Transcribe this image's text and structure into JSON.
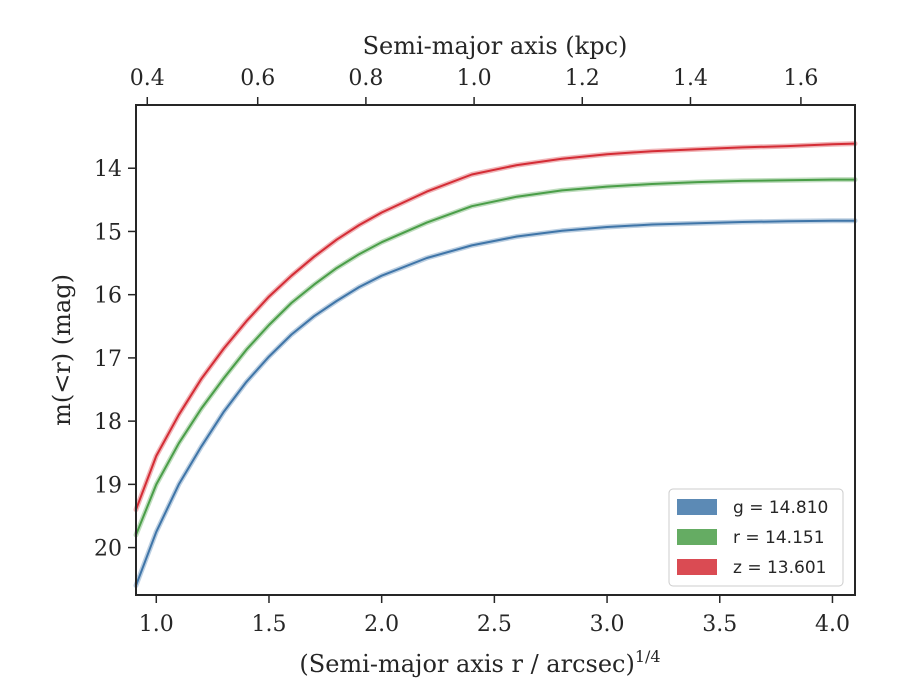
{
  "chart_data": {
    "type": "line",
    "title": "",
    "xlabel": "(Semi-major axis r / arcsec)",
    "xlabel_exponent": "1/4",
    "ylabel": "m(<r) (mag)",
    "top_xlabel": "Semi-major axis (kpc)",
    "xlim": [
      0.91,
      4.1
    ],
    "ylim": [
      20.75,
      13.0
    ],
    "y_inverted": true,
    "xticks": [
      1.0,
      1.5,
      2.0,
      2.5,
      3.0,
      3.5,
      4.0
    ],
    "xtick_labels": [
      "1.0",
      "1.5",
      "2.0",
      "2.5",
      "3.0",
      "3.5",
      "4.0"
    ],
    "yticks": [
      14,
      15,
      16,
      17,
      18,
      19,
      20
    ],
    "ytick_labels": [
      "14",
      "15",
      "16",
      "17",
      "18",
      "19",
      "20"
    ],
    "top_axis": {
      "ticks_kpc": [
        0.4,
        0.6,
        0.8,
        1.0,
        1.2,
        1.4,
        1.6
      ],
      "tick_labels": [
        "0.4",
        "0.6",
        "0.8",
        "1.0",
        "1.2",
        "1.4",
        "1.6"
      ],
      "at_x": [
        0.96,
        1.45,
        1.93,
        2.41,
        2.89,
        3.37,
        3.86
      ]
    },
    "grid": false,
    "legend_position": "lower-right",
    "series": [
      {
        "name": "g = 14.810",
        "color": "#3f75a8",
        "x": [
          0.91,
          1.0,
          1.1,
          1.2,
          1.3,
          1.4,
          1.5,
          1.6,
          1.7,
          1.8,
          1.9,
          2.0,
          2.2,
          2.4,
          2.6,
          2.8,
          3.0,
          3.2,
          3.4,
          3.6,
          3.8,
          4.0,
          4.1
        ],
        "y": [
          20.6,
          19.75,
          19.0,
          18.4,
          17.85,
          17.38,
          16.98,
          16.63,
          16.34,
          16.1,
          15.88,
          15.7,
          15.42,
          15.22,
          15.08,
          14.99,
          14.93,
          14.89,
          14.87,
          14.85,
          14.84,
          14.83,
          14.83
        ]
      },
      {
        "name": "r = 14.151",
        "color": "#4a9e48",
        "x": [
          0.91,
          1.0,
          1.1,
          1.2,
          1.3,
          1.4,
          1.5,
          1.6,
          1.7,
          1.8,
          1.9,
          2.0,
          2.2,
          2.4,
          2.6,
          2.8,
          3.0,
          3.2,
          3.4,
          3.6,
          3.8,
          4.0,
          4.1
        ],
        "y": [
          19.8,
          19.0,
          18.35,
          17.8,
          17.32,
          16.87,
          16.48,
          16.13,
          15.84,
          15.58,
          15.36,
          15.17,
          14.86,
          14.6,
          14.45,
          14.35,
          14.29,
          14.25,
          14.22,
          14.2,
          14.19,
          14.18,
          14.18
        ]
      },
      {
        "name": "z = 13.601",
        "color": "#d42c35",
        "x": [
          0.91,
          1.0,
          1.1,
          1.2,
          1.3,
          1.4,
          1.5,
          1.6,
          1.7,
          1.8,
          1.9,
          2.0,
          2.2,
          2.4,
          2.6,
          2.8,
          3.0,
          3.2,
          3.4,
          3.6,
          3.8,
          4.0,
          4.1
        ],
        "y": [
          19.4,
          18.55,
          17.9,
          17.33,
          16.85,
          16.42,
          16.03,
          15.7,
          15.4,
          15.13,
          14.9,
          14.7,
          14.37,
          14.1,
          13.95,
          13.85,
          13.78,
          13.73,
          13.7,
          13.67,
          13.65,
          13.62,
          13.61
        ]
      }
    ]
  }
}
